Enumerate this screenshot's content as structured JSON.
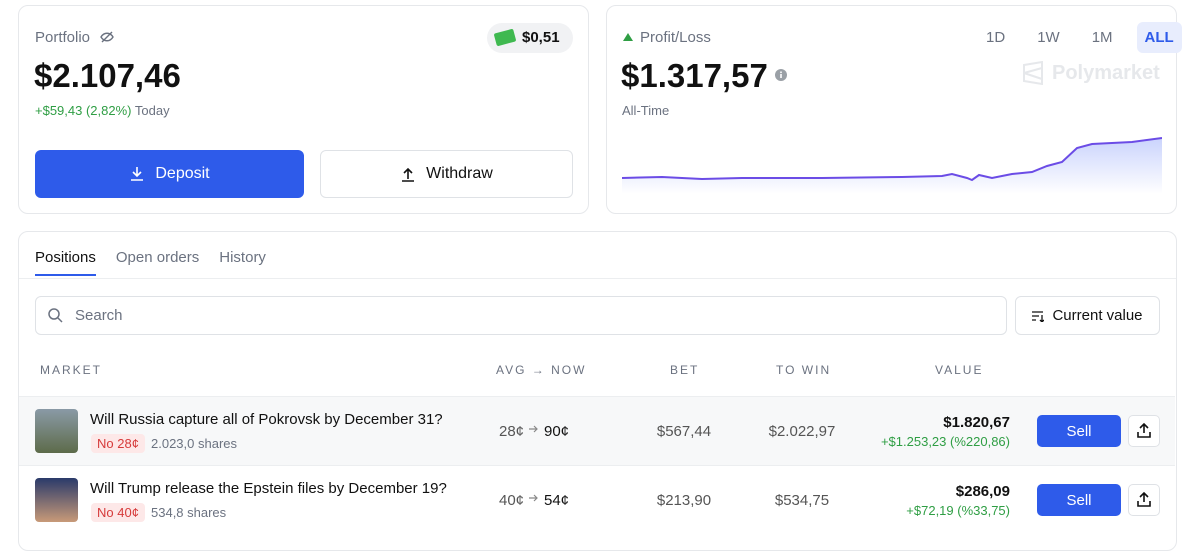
{
  "portfolio": {
    "label": "Portfolio",
    "cash": "$0,51",
    "value": "$2.107,46",
    "change": "+$59,43 (2,82%)",
    "change_period": "Today",
    "deposit": "Deposit",
    "withdraw": "Withdraw"
  },
  "profit_loss": {
    "label": "Profit/Loss",
    "ranges": [
      "1D",
      "1W",
      "1M",
      "ALL"
    ],
    "value": "$1.317,57",
    "brand": "Polymarket",
    "period": "All-Time"
  },
  "positions": {
    "tabs": [
      "Positions",
      "Open orders",
      "History"
    ],
    "search_placeholder": "Search",
    "sort_button": "Current value",
    "table": {
      "headers": [
        "MARKET",
        "AVG → NOW",
        "BET",
        "TO WIN",
        "VALUE"
      ],
      "rows": [
        {
          "market": "Will Russia capture all of Pokrovsk by December 31?",
          "outcome": "No 28¢",
          "shares": "2.023,0 shares",
          "avg": "28¢",
          "now": "90¢",
          "bet": "$567,44",
          "to_win": "$2.022,97",
          "value": "$1.820,67",
          "change": "+$1.253,23 (%220,86)",
          "action": "Sell"
        },
        {
          "market": "Will Trump release the Epstein files by December 19?",
          "outcome": "No 40¢",
          "shares": "534,8 shares",
          "avg": "40¢",
          "now": "54¢",
          "bet": "$213,90",
          "to_win": "$534,75",
          "value": "$286,09",
          "change": "+$72,19 (%33,75)",
          "action": "Sell"
        }
      ]
    }
  }
}
